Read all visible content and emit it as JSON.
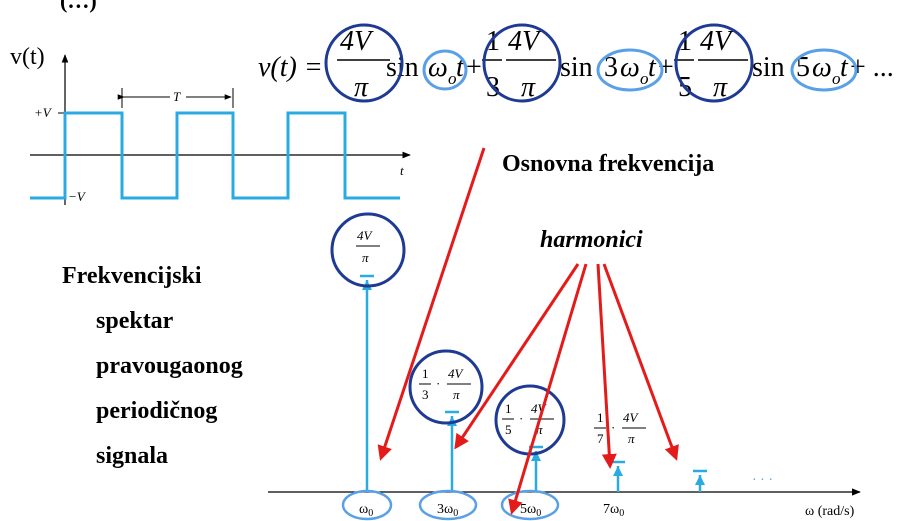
{
  "title_fragment": "(…)",
  "waveform": {
    "ylabel": "v(t)",
    "plus_level": "+V",
    "minus_level": "−V",
    "period_label": "T",
    "time_axis_label": "t"
  },
  "equation": {
    "lhs": "v(t) =",
    "term1": {
      "num": "4V",
      "den": "π",
      "sin": "sin",
      "arg": "ω",
      "arg_sub": "o",
      "arg_t": "t"
    },
    "term2": {
      "coef_num": "1",
      "coef_den": "3",
      "num": "4V",
      "den": "π",
      "sin": "sin",
      "arg_k": "3",
      "arg": "ω",
      "arg_sub": "o",
      "arg_t": "t"
    },
    "term3": {
      "coef_num": "1",
      "coef_den": "5",
      "num": "4V",
      "den": "π",
      "sin": "sin",
      "arg_k": "5",
      "arg": "ω",
      "arg_sub": "o",
      "arg_t": "t"
    },
    "plus": "+",
    "tail": "+ ..."
  },
  "labels": {
    "fundamental": "Osnovna frekvencija",
    "harmonics": "harmonici",
    "caption": [
      "Frekvencijski",
      "spektar",
      "pravougaonog",
      "periodičnog",
      "signala"
    ]
  },
  "spectrum": {
    "axis_label": "ω (rad/s)",
    "ellipsis": "· · ·",
    "ticks": [
      "ω",
      "3ω",
      "5ω",
      "7ω"
    ],
    "tick_sub": "0",
    "amp1": {
      "num": "4V",
      "den": "π"
    },
    "amp3": {
      "c_num": "1",
      "c_den": "3",
      "dot": "·",
      "num": "4V",
      "den": "π"
    },
    "amp5": {
      "c_num": "1",
      "c_den": "5",
      "dot": "·",
      "num": "4V",
      "den": "π"
    },
    "amp7": {
      "c_num": "1",
      "c_den": "7",
      "dot": "·",
      "num": "4V",
      "den": "π"
    }
  },
  "colors": {
    "signal": "#29abe2",
    "dark_circle": "#1f3a93",
    "light_circle": "#5aa0e6",
    "arrow": "#e41b1b",
    "axis": "#000000"
  }
}
